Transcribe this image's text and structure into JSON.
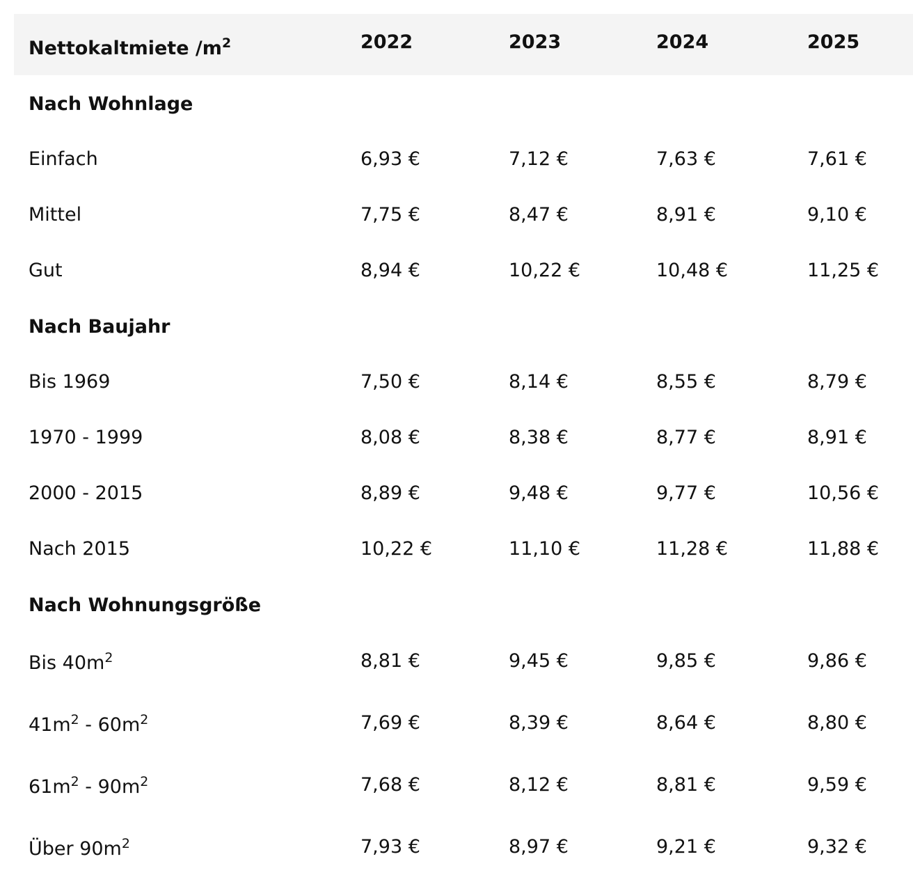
{
  "table": {
    "header": {
      "label_text": "Nettokaltmiete /m",
      "label_sup": "2",
      "years": [
        "2022",
        "2023",
        "2024",
        "2025"
      ]
    },
    "sections": [
      {
        "title": "Nach Wohnlage",
        "rows": [
          {
            "label": "Einfach",
            "values": [
              "6,93 €",
              "7,12 €",
              "7,63 €",
              "7,61 €"
            ]
          },
          {
            "label": "Mittel",
            "values": [
              "7,75 €",
              "8,47 €",
              "8,91 €",
              "9,10 €"
            ]
          },
          {
            "label": "Gut",
            "values": [
              "8,94 €",
              "10,22 €",
              "10,48 €",
              "11,25 €"
            ]
          }
        ]
      },
      {
        "title": "Nach Baujahr",
        "rows": [
          {
            "label": "Bis 1969",
            "values": [
              "7,50 €",
              "8,14 €",
              "8,55 €",
              "8,79 €"
            ]
          },
          {
            "label": "1970 - 1999",
            "values": [
              "8,08 €",
              "8,38 €",
              "8,77 €",
              "8,91 €"
            ]
          },
          {
            "label": "2000 - 2015",
            "values": [
              "8,89 €",
              "9,48 €",
              "9,77 €",
              "10,56 €"
            ]
          },
          {
            "label": "Nach 2015",
            "values": [
              "10,22 €",
              "11,10 €",
              "11,28 €",
              "11,88 €"
            ]
          }
        ]
      },
      {
        "title": "Nach Wohnungsgröße",
        "rows": [
          {
            "label_parts": [
              "Bis 40m",
              "2",
              "",
              ""
            ],
            "values": [
              "8,81 €",
              "9,45 €",
              "9,85 €",
              "9,86 €"
            ]
          },
          {
            "label_parts": [
              "41m",
              "2",
              " - 60m",
              "2"
            ],
            "values": [
              "7,69 €",
              "8,39 €",
              "8,64 €",
              "8,80 €"
            ]
          },
          {
            "label_parts": [
              "61m",
              "2",
              " - 90m",
              "2"
            ],
            "values": [
              "7,68 €",
              "8,12 €",
              "8,81 €",
              "9,59 €"
            ]
          },
          {
            "label_parts": [
              "Über 90m",
              "2",
              "",
              ""
            ],
            "values": [
              "7,93 €",
              "8,97 €",
              "9,21 €",
              "9,32 €"
            ]
          }
        ]
      }
    ]
  }
}
